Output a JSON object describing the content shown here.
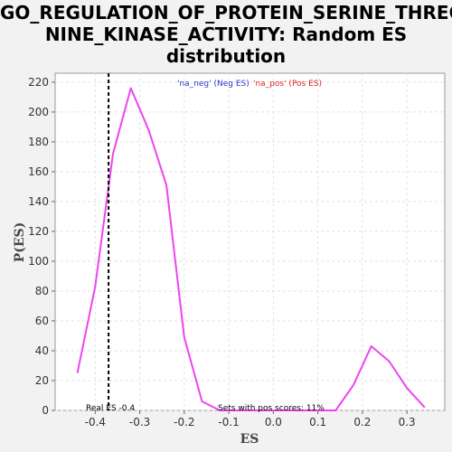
{
  "chart_data": {
    "type": "line",
    "title_lines": [
      "GO_REGULATION_OF_PROTEIN_SERINE_THREO",
      "NINE_KINASE_ACTIVITY: Random ES",
      "distribution"
    ],
    "xlabel": "ES",
    "ylabel": "P(ES)",
    "xlim": [
      -0.49,
      0.385
    ],
    "ylim": [
      0,
      226
    ],
    "xticks": [
      -0.4,
      -0.3,
      -0.2,
      -0.1,
      0.0,
      0.1,
      0.2,
      0.3
    ],
    "xtick_labels": [
      "-0.4",
      "-0.3",
      "-0.2",
      "-0.1",
      "0.0",
      "0.1",
      "0.2",
      "0.3"
    ],
    "yticks": [
      0,
      20,
      40,
      60,
      80,
      100,
      120,
      140,
      160,
      180,
      200,
      220
    ],
    "grid": true,
    "legend": [
      {
        "label": "'na_neg' (Neg ES)",
        "color": "#3333cc"
      },
      {
        "label": "'na_pos' (Pos ES)",
        "color": "#e02020"
      }
    ],
    "series": [
      {
        "color": "#ee44ee",
        "points": [
          [
            -0.44,
            25
          ],
          [
            -0.4,
            83
          ],
          [
            -0.36,
            172
          ],
          [
            -0.32,
            216
          ],
          [
            -0.28,
            188
          ],
          [
            -0.24,
            151
          ],
          [
            -0.2,
            49
          ],
          [
            -0.16,
            6
          ],
          [
            -0.12,
            0
          ],
          [
            0.05,
            0
          ],
          [
            0.14,
            0
          ],
          [
            0.18,
            17
          ],
          [
            0.22,
            43
          ],
          [
            0.26,
            33
          ],
          [
            0.3,
            15
          ],
          [
            0.34,
            2
          ]
        ]
      }
    ],
    "real_es": -0.37,
    "real_es_label": "Real ES -0.4",
    "pos_scores_label": "Sets with pos scores: 11%"
  }
}
